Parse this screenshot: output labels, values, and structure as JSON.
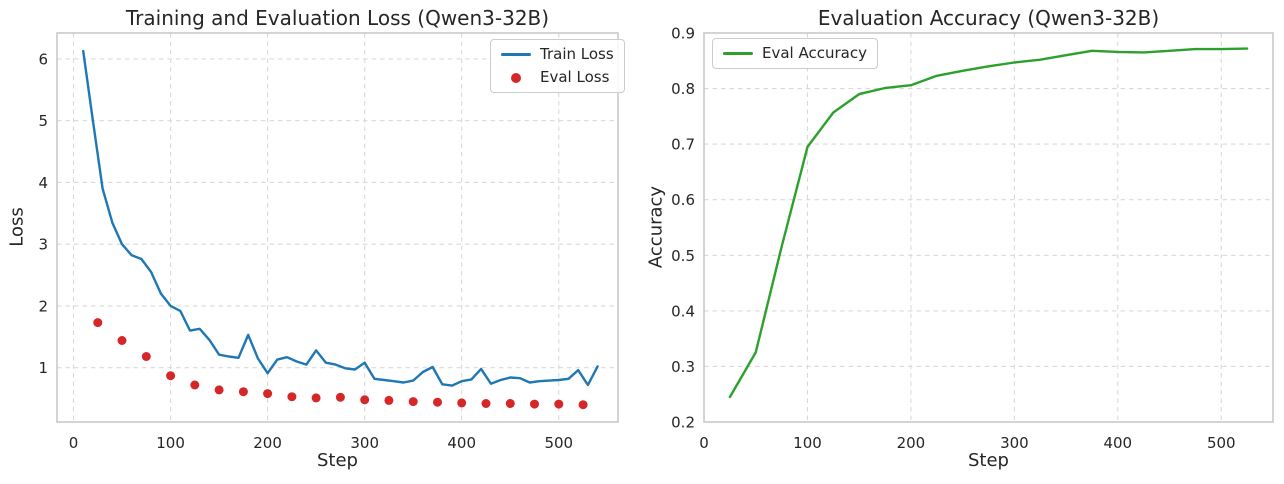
{
  "chart_data": [
    {
      "type": "line",
      "title": "Training and Evaluation Loss (Qwen3-32B)",
      "xlabel": "Step",
      "ylabel": "Loss",
      "xlim": [
        -17,
        561
      ],
      "ylim": [
        0.12,
        6.42
      ],
      "xticks": [
        0,
        100,
        200,
        300,
        400,
        500
      ],
      "yticks": [
        1,
        2,
        3,
        4,
        5,
        6
      ],
      "grid": true,
      "legend_position": "top-right",
      "series": [
        {
          "name": "Train Loss",
          "type": "line",
          "color": "#1f77b4",
          "x": [
            10,
            20,
            30,
            40,
            50,
            60,
            70,
            80,
            90,
            100,
            110,
            120,
            130,
            140,
            150,
            160,
            170,
            180,
            190,
            200,
            210,
            220,
            230,
            240,
            250,
            260,
            270,
            280,
            290,
            300,
            310,
            320,
            330,
            340,
            350,
            360,
            370,
            380,
            390,
            400,
            410,
            420,
            430,
            440,
            450,
            460,
            470,
            480,
            490,
            500,
            510,
            520,
            530,
            540
          ],
          "y": [
            6.13,
            5.0,
            3.9,
            3.35,
            3.0,
            2.82,
            2.76,
            2.55,
            2.2,
            2.0,
            1.92,
            1.6,
            1.63,
            1.45,
            1.21,
            1.18,
            1.16,
            1.53,
            1.15,
            0.91,
            1.13,
            1.17,
            1.1,
            1.05,
            1.28,
            1.08,
            1.05,
            0.99,
            0.97,
            1.08,
            0.82,
            0.8,
            0.78,
            0.76,
            0.79,
            0.93,
            1.01,
            0.73,
            0.71,
            0.78,
            0.81,
            0.98,
            0.74,
            0.8,
            0.84,
            0.83,
            0.76,
            0.78,
            0.79,
            0.8,
            0.82,
            0.96,
            0.72,
            1.02
          ]
        },
        {
          "name": "Eval Loss",
          "type": "scatter",
          "color": "#d62728",
          "x": [
            25,
            50,
            75,
            100,
            125,
            150,
            175,
            200,
            225,
            250,
            275,
            300,
            325,
            350,
            375,
            400,
            425,
            450,
            475,
            500,
            525
          ],
          "y": [
            1.73,
            1.44,
            1.18,
            0.87,
            0.72,
            0.64,
            0.61,
            0.58,
            0.53,
            0.51,
            0.52,
            0.48,
            0.47,
            0.45,
            0.44,
            0.43,
            0.42,
            0.42,
            0.41,
            0.41,
            0.4
          ]
        }
      ]
    },
    {
      "type": "line",
      "title": "Evaluation Accuracy (Qwen3-32B)",
      "xlabel": "Step",
      "ylabel": "Accuracy",
      "xlim": [
        0,
        550
      ],
      "ylim": [
        0.2,
        0.9
      ],
      "xticks": [
        0,
        100,
        200,
        300,
        400,
        500
      ],
      "yticks": [
        0.2,
        0.3,
        0.4,
        0.5,
        0.6,
        0.7,
        0.8,
        0.9
      ],
      "ytick_labels": [
        "0.2",
        "0.3",
        "0.4",
        "0.5",
        "0.6",
        "0.7",
        "0.8",
        "0.9"
      ],
      "grid": true,
      "legend_position": "top-left",
      "series": [
        {
          "name": "Eval Accuracy",
          "type": "line",
          "color": "#2ca02c",
          "x": [
            25,
            50,
            75,
            100,
            125,
            150,
            175,
            200,
            225,
            250,
            275,
            300,
            325,
            350,
            375,
            400,
            425,
            450,
            475,
            500,
            525
          ],
          "y": [
            0.245,
            0.325,
            0.515,
            0.695,
            0.757,
            0.79,
            0.801,
            0.806,
            0.823,
            0.832,
            0.84,
            0.847,
            0.852,
            0.86,
            0.868,
            0.866,
            0.865,
            0.868,
            0.871,
            0.871,
            0.872
          ]
        }
      ]
    }
  ],
  "style": {
    "grid_color": "#d9d9d9",
    "spine_color": "#c6c6c6",
    "text_color": "#262626",
    "background": "#ffffff"
  }
}
